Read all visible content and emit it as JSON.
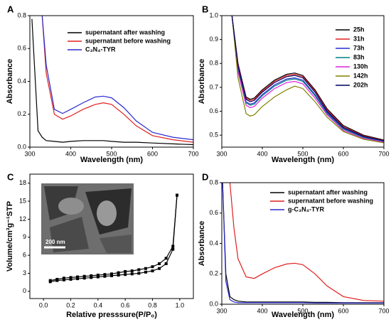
{
  "chart_data": [
    {
      "type": "line",
      "panel": "A",
      "xlabel": "Wavelength (nm)",
      "ylabel": "Absorbance",
      "x": [
        305,
        320,
        330,
        340,
        360,
        380,
        400,
        430,
        460,
        480,
        500,
        530,
        560,
        600,
        650,
        700
      ],
      "series": [
        {
          "name": "supernatant after washing",
          "color": "#000000",
          "values": [
            0.78,
            0.1,
            0.06,
            0.04,
            0.035,
            0.03,
            0.035,
            0.04,
            0.04,
            0.04,
            0.035,
            0.03,
            0.03,
            0.025,
            0.02,
            0.015
          ]
        },
        {
          "name": "supernatant before washing",
          "color": "#e02020",
          "values": [
            null,
            null,
            0.8,
            0.45,
            0.2,
            0.17,
            0.19,
            0.23,
            0.26,
            0.27,
            0.26,
            0.2,
            0.13,
            0.07,
            0.045,
            0.03
          ]
        },
        {
          "name": "C₃N₄-TYR",
          "color": "#2a2ad0",
          "values": [
            null,
            null,
            0.8,
            0.5,
            0.23,
            0.205,
            0.23,
            0.27,
            0.305,
            0.31,
            0.3,
            0.24,
            0.16,
            0.09,
            0.06,
            0.045
          ]
        }
      ],
      "xlim": [
        300,
        700
      ],
      "xticks": [
        300,
        400,
        500,
        600,
        700
      ],
      "ylim": [
        0,
        0.8
      ],
      "yticks": [
        {
          "value": 0,
          "label": "0.0"
        },
        0.2,
        0.4,
        0.6,
        0.8
      ],
      "legend": "top"
    },
    {
      "type": "line",
      "panel": "B",
      "xlabel": "Wavelength (nm)",
      "ylabel": "Absorbance",
      "x": [
        325,
        340,
        360,
        370,
        380,
        400,
        430,
        460,
        480,
        500,
        530,
        560,
        600,
        650,
        700
      ],
      "series": [
        {
          "name": "25h",
          "color": "#000000",
          "values": [
            1.0,
            0.8,
            0.66,
            0.65,
            0.655,
            0.69,
            0.73,
            0.755,
            0.76,
            0.75,
            0.69,
            0.61,
            0.54,
            0.5,
            0.48
          ]
        },
        {
          "name": "31h",
          "color": "#e02020",
          "values": [
            1.0,
            0.795,
            0.655,
            0.645,
            0.65,
            0.685,
            0.725,
            0.75,
            0.755,
            0.745,
            0.685,
            0.605,
            0.535,
            0.497,
            0.478
          ]
        },
        {
          "name": "73h",
          "color": "#2a2ad0",
          "values": [
            1.0,
            0.78,
            0.64,
            0.63,
            0.635,
            0.67,
            0.71,
            0.735,
            0.74,
            0.73,
            0.67,
            0.595,
            0.528,
            0.492,
            0.475
          ]
        },
        {
          "name": "83h",
          "color": "#008080",
          "values": [
            1.0,
            0.775,
            0.635,
            0.625,
            0.63,
            0.665,
            0.705,
            0.73,
            0.735,
            0.725,
            0.665,
            0.59,
            0.525,
            0.49,
            0.473
          ]
        },
        {
          "name": "130h",
          "color": "#e020e0",
          "values": [
            1.0,
            0.765,
            0.625,
            0.615,
            0.62,
            0.655,
            0.695,
            0.72,
            0.725,
            0.715,
            0.655,
            0.585,
            0.52,
            0.487,
            0.471
          ]
        },
        {
          "name": "142h",
          "color": "#808000",
          "values": [
            1.0,
            0.74,
            0.59,
            0.58,
            0.585,
            0.62,
            0.66,
            0.69,
            0.705,
            0.695,
            0.64,
            0.575,
            0.515,
            0.483,
            0.468
          ]
        },
        {
          "name": "202h",
          "color": "#000060",
          "values": [
            1.0,
            0.79,
            0.65,
            0.64,
            0.645,
            0.68,
            0.72,
            0.745,
            0.75,
            0.74,
            0.68,
            0.6,
            0.532,
            0.495,
            0.477
          ]
        }
      ],
      "xlim": [
        300,
        700
      ],
      "xticks": [
        300,
        400,
        500,
        600,
        700
      ],
      "ylim": [
        0.45,
        1.0
      ],
      "yticks": [
        0.5,
        0.6,
        0.7,
        0.8,
        0.9,
        {
          "value": 1,
          "label": "1.0"
        }
      ],
      "legend": "top-right"
    },
    {
      "type": "line",
      "panel": "C",
      "xlabel": "Relative presssure(P/P₀)",
      "ylabel": "Volume/cm³g⁻¹STP",
      "inset_label": "200 nm",
      "marker": "square",
      "x": [
        0.05,
        0.1,
        0.15,
        0.2,
        0.25,
        0.3,
        0.35,
        0.4,
        0.45,
        0.5,
        0.55,
        0.6,
        0.65,
        0.7,
        0.75,
        0.8,
        0.85,
        0.9,
        0.95,
        0.98
      ],
      "series": [
        {
          "color": "#000000",
          "values": [
            1.6,
            1.8,
            1.9,
            2.0,
            2.1,
            2.2,
            2.3,
            2.4,
            2.5,
            2.6,
            2.7,
            2.8,
            2.9,
            3.0,
            3.2,
            3.4,
            3.8,
            4.6,
            7.0,
            16.0
          ]
        },
        {
          "color": "#000000",
          "values": [
            1.8,
            2.0,
            2.2,
            2.3,
            2.4,
            2.5,
            2.6,
            2.7,
            2.8,
            2.9,
            3.1,
            3.3,
            3.4,
            3.6,
            3.8,
            4.1,
            4.6,
            5.5,
            7.5,
            16.0
          ]
        }
      ],
      "xlim": [
        -0.1,
        1.1
      ],
      "xticks": [
        {
          "value": 0,
          "label": "0.0"
        },
        0.2,
        0.4,
        0.6,
        0.8,
        {
          "value": 1,
          "label": "1.0"
        }
      ],
      "ylim": [
        -1.2,
        19.5
      ],
      "yticks": [
        0,
        3,
        6,
        9,
        12,
        15,
        18
      ]
    },
    {
      "type": "line",
      "panel": "D",
      "xlabel": "Wavelength (nm)",
      "ylabel": "Absorbance",
      "x": [
        302,
        310,
        320,
        330,
        340,
        360,
        380,
        400,
        430,
        460,
        480,
        500,
        530,
        560,
        600,
        650,
        700
      ],
      "series": [
        {
          "name": "supernatant after washing",
          "color": "#000000",
          "values": [
            0.8,
            0.2,
            0.05,
            0.03,
            0.02,
            0.015,
            0.015,
            0.015,
            0.015,
            0.015,
            0.015,
            0.015,
            0.012,
            0.012,
            0.01,
            0.01,
            0.01
          ]
        },
        {
          "name": "supernatant before washing",
          "color": "#e02020",
          "values": [
            null,
            null,
            0.8,
            0.5,
            0.3,
            0.18,
            0.17,
            0.2,
            0.24,
            0.265,
            0.27,
            0.26,
            0.2,
            0.12,
            0.05,
            0.025,
            0.02
          ]
        },
        {
          "name": "g-C₃N₄-TYR",
          "color": "#2a2ad0",
          "values": [
            0.8,
            0.15,
            0.03,
            0.015,
            0.01,
            0.01,
            0.01,
            0.01,
            0.01,
            0.01,
            0.01,
            0.01,
            0.008,
            0.008,
            0.008,
            0.008,
            0.008
          ]
        }
      ],
      "xlim": [
        300,
        700
      ],
      "xticks": [
        300,
        400,
        500,
        600,
        700
      ],
      "ylim": [
        0,
        0.8
      ],
      "yticks": [
        {
          "value": 0,
          "label": "0.0"
        },
        0.2,
        0.4,
        0.6,
        0.8
      ],
      "legend": "top"
    }
  ]
}
